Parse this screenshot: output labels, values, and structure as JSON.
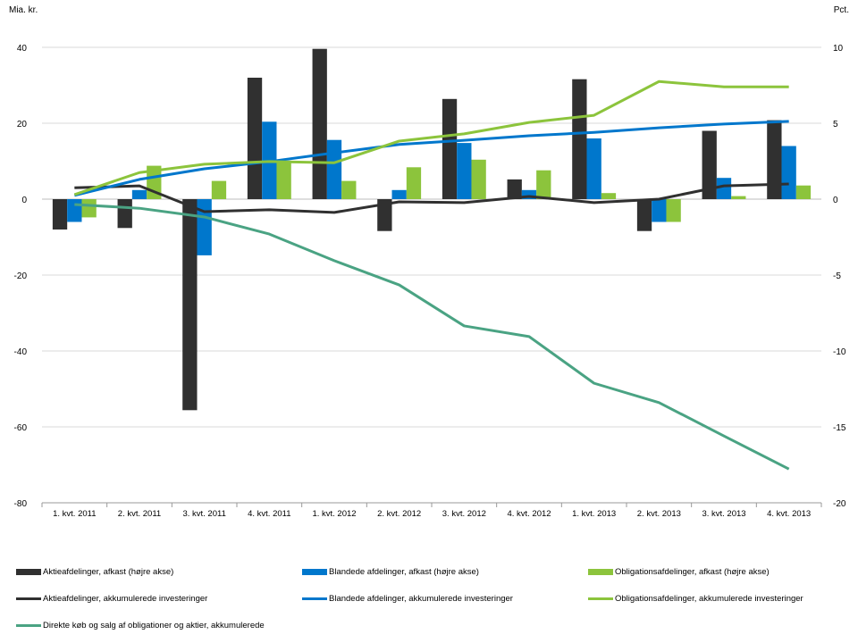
{
  "chart_data": {
    "type": "bar+line",
    "left_axis": {
      "label": "Mia. kr.",
      "range": [
        -80,
        40
      ],
      "ticks": [
        40,
        20,
        0,
        -20,
        -40,
        -60,
        -80
      ]
    },
    "right_axis": {
      "label": "Pct.",
      "range": [
        -20,
        10
      ],
      "ticks": [
        10,
        5,
        0,
        -5,
        -10,
        -15,
        -20
      ]
    },
    "categories": [
      "1. kvt. 2011",
      "2. kvt. 2011",
      "3. kvt. 2011",
      "4. kvt. 2011",
      "1. kvt. 2012",
      "2. kvt. 2012",
      "3. kvt. 2012",
      "4. kvt. 2012",
      "1. kvt. 2013",
      "2. kvt. 2013",
      "3. kvt. 2013",
      "4. kvt. 2013"
    ],
    "bar_series": [
      {
        "name": "Aktieafdelinger, afkast (højre akse)",
        "axis": "right",
        "color": "#303030",
        "values": [
          -2.0,
          -1.9,
          -13.9,
          8.0,
          9.9,
          -2.1,
          6.6,
          1.3,
          7.9,
          -2.1,
          4.5,
          5.2
        ]
      },
      {
        "name": "Blandede afdelinger, afkast (højre akse)",
        "axis": "right",
        "color": "#0077cc",
        "values": [
          -1.5,
          0.6,
          -3.7,
          5.1,
          3.9,
          0.6,
          3.7,
          0.6,
          4.0,
          -1.5,
          1.4,
          3.5
        ]
      },
      {
        "name": "Obligationsafdelinger, afkast (højre akse)",
        "axis": "right",
        "color": "#8cc43c",
        "values": [
          -1.2,
          2.2,
          1.2,
          2.4,
          1.2,
          2.1,
          2.6,
          1.9,
          0.4,
          -1.5,
          0.2,
          0.9
        ]
      }
    ],
    "line_series": [
      {
        "name": "Aktieafdelinger, akkumulerede investeringer",
        "axis": "left",
        "color": "#303030",
        "values": [
          3.0,
          3.5,
          -3.3,
          -2.8,
          -3.5,
          -0.7,
          -0.9,
          0.7,
          -0.9,
          0.0,
          3.5,
          4.0
        ]
      },
      {
        "name": "Blandede afdelinger, akkumulerede investeringer",
        "axis": "left",
        "color": "#0077cc",
        "values": [
          1.0,
          5.2,
          8.0,
          9.9,
          12.2,
          14.4,
          15.5,
          16.7,
          17.6,
          18.8,
          19.8,
          20.5
        ]
      },
      {
        "name": "Obligationsafdelinger, akkumulerede investeringer",
        "axis": "left",
        "color": "#8cc43c",
        "values": [
          1.2,
          7.0,
          9.2,
          9.9,
          9.6,
          15.3,
          17.2,
          20.2,
          22.1,
          31.0,
          29.6,
          29.6
        ]
      },
      {
        "name": "Direkte køb og salg af obligationer og aktier, akkumulerede",
        "axis": "left",
        "color": "#4aa383",
        "values": [
          -1.4,
          -2.4,
          -4.7,
          -9.2,
          -16.2,
          -22.6,
          -33.4,
          -36.2,
          -48.5,
          -53.6,
          -62.4,
          -71.1
        ]
      }
    ],
    "grid": true,
    "legend_placement": "bottom"
  }
}
